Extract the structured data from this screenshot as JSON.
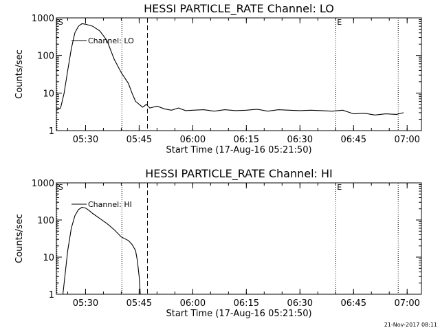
{
  "chart_data": [
    {
      "type": "line",
      "title": "HESSI PARTICLE_RATE Channel: LO",
      "xlabel": "Start Time (17-Aug-16 05:21:50)",
      "ylabel": "Counts/sec",
      "yscale": "log",
      "ylim": [
        1,
        1000
      ],
      "xlim": [
        "05:21:50",
        "07:04:00"
      ],
      "x_ticks": [
        "05:30",
        "05:45",
        "06:00",
        "06:15",
        "06:30",
        "06:45",
        "07:00"
      ],
      "y_ticks": [
        "1",
        "10",
        "100",
        "1000"
      ],
      "series": [
        {
          "name": "Channel: LO",
          "x": [
            "05:21:50",
            "05:23:00",
            "05:24:00",
            "05:25:00",
            "05:26:00",
            "05:27:00",
            "05:28:00",
            "05:29:00",
            "05:30:00",
            "05:32:00",
            "05:34:00",
            "05:36:00",
            "05:38:00",
            "05:40:00",
            "05:42:00",
            "05:43:00",
            "05:44:00",
            "05:44:30",
            "05:45:00",
            "05:46:00",
            "05:47:00",
            "05:48:00",
            "05:50:00",
            "05:52:00",
            "05:54:00",
            "05:56:00",
            "05:58:00",
            "06:00:00",
            "06:03:00",
            "06:06:00",
            "06:09:00",
            "06:12:00",
            "06:15:00",
            "06:18:00",
            "06:21:00",
            "06:24:00",
            "06:27:00",
            "06:30:00",
            "06:33:00",
            "06:36:00",
            "06:39:00",
            "06:42:00",
            "06:45:00",
            "06:48:00",
            "06:51:00",
            "06:54:00",
            "06:57:00",
            "06:59:00"
          ],
          "values": [
            3.5,
            4,
            10,
            40,
            150,
            400,
            600,
            700,
            680,
            600,
            450,
            250,
            80,
            35,
            18,
            10,
            6,
            5.5,
            5,
            4.2,
            5,
            4,
            4.5,
            3.8,
            3.5,
            4,
            3.4,
            3.5,
            3.6,
            3.3,
            3.6,
            3.4,
            3.5,
            3.7,
            3.3,
            3.6,
            3.5,
            3.4,
            3.5,
            3.4,
            3.3,
            3.5,
            2.8,
            2.9,
            2.6,
            2.8,
            2.7,
            3
          ]
        }
      ],
      "markers": [
        {
          "style": "dotted",
          "label": "S",
          "x": "05:22:00"
        },
        {
          "style": "dotted",
          "label": "",
          "x": "05:40:10"
        },
        {
          "style": "dashed",
          "label": "",
          "x": "05:47:20"
        },
        {
          "style": "dotted",
          "label": "E",
          "x": "06:40:00"
        },
        {
          "style": "dotted",
          "label": "",
          "x": "06:57:30"
        }
      ]
    },
    {
      "type": "line",
      "title": "HESSI PARTICLE_RATE Channel: HI",
      "xlabel": "Start Time (17-Aug-16 05:21:50)",
      "ylabel": "Counts/sec",
      "yscale": "log",
      "ylim": [
        1,
        1000
      ],
      "xlim": [
        "05:21:50",
        "07:04:00"
      ],
      "x_ticks": [
        "05:30",
        "05:45",
        "06:00",
        "06:15",
        "06:30",
        "06:45",
        "07:00"
      ],
      "y_ticks": [
        "1",
        "10",
        "100",
        "1000"
      ],
      "series": [
        {
          "name": "Channel: HI",
          "x": [
            "05:23:40",
            "05:24:00",
            "05:25:00",
            "05:26:00",
            "05:27:00",
            "05:28:00",
            "05:29:00",
            "05:30:00",
            "05:31:00",
            "05:32:00",
            "05:34:00",
            "05:36:00",
            "05:38:00",
            "05:40:00",
            "05:42:00",
            "05:43:00",
            "05:44:00",
            "05:44:30",
            "05:45:00",
            "05:45:20"
          ],
          "values": [
            1,
            2,
            15,
            60,
            130,
            190,
            220,
            210,
            180,
            150,
            110,
            80,
            55,
            35,
            28,
            22,
            15,
            8,
            3,
            1
          ]
        }
      ],
      "markers": [
        {
          "style": "dotted",
          "label": "S",
          "x": "05:22:00"
        },
        {
          "style": "dotted",
          "label": "",
          "x": "05:40:10"
        },
        {
          "style": "dashed",
          "label": "",
          "x": "05:47:20"
        },
        {
          "style": "dotted",
          "label": "E",
          "x": "06:40:00"
        },
        {
          "style": "dotted",
          "label": "",
          "x": "06:57:30"
        }
      ]
    }
  ],
  "footer": {
    "timestamp": "21-Nov-2017 08:11"
  }
}
